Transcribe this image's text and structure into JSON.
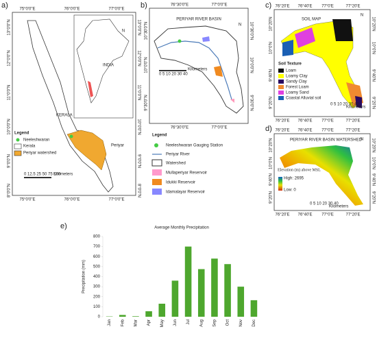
{
  "panel_a": {
    "label": "a)",
    "x_labels": [
      "75°0'0\"E",
      "76°0'0\"E",
      "77°0'0\"E"
    ],
    "y_labels": [
      "13°0'0\"N",
      "12°0'0\"N",
      "11°0'0\"N",
      "10°0'0\"N",
      "9°0'0\"N",
      "8°0'0\"N"
    ],
    "north": "N",
    "india": "INDIA",
    "kerala": "KERALA",
    "periyar": "Periyar",
    "legend_title": "Legend",
    "legend_items": [
      "Neeleshwaran",
      "Kerala",
      "Periyar watershed"
    ],
    "scale": "0 12.5 25 50 75 100",
    "scale_unit": "Kilometers"
  },
  "panel_b": {
    "label": "b)",
    "title": "PERIYAR RIVER BASIN",
    "x_labels": [
      "76°30'0\"E",
      "77°0'0\"E"
    ],
    "y_labels": [
      "10°30'0\"N",
      "10°0'0\"N",
      "9°30'0\"N"
    ],
    "north": "N",
    "scale": "0 5 10 20 30 40",
    "scale_unit": "Kilometers",
    "legend_title": "Legend",
    "legend_items": [
      "Neeleshwaran Gauging Station",
      "Periyar River",
      "Watershed",
      "Mullaperiyar Reservoir",
      "Idukki Reservoir",
      "Idamalayar Reservoir"
    ]
  },
  "panel_c": {
    "label": "c)",
    "title": "SOIL MAP",
    "x_labels": [
      "76°20'E",
      "76°40'E",
      "77°0'E",
      "77°20'E"
    ],
    "y_labels": [
      "10°20'N",
      "10°0'N",
      "9°40'N",
      "9°20'N"
    ],
    "north": "N",
    "legend_title": "Soil Texture",
    "legend_items": [
      "Loam",
      "Loamy Clay",
      "Sandy Clay",
      "Forest Loam",
      "Loamy Sand",
      "Coastal Alluvial soil"
    ],
    "scale": "0 5 10 20 30 40",
    "scale_unit": "Kilometers"
  },
  "panel_d": {
    "label": "d)",
    "title": "PERIYAR RIVER BASIN WATERSHED",
    "x_labels": [
      "76°20'E",
      "76°40'E",
      "77°0'E",
      "77°20'E"
    ],
    "y_labels": [
      "10°20'N",
      "10°0'N",
      "9°40'N",
      "9°20'N"
    ],
    "north": "N",
    "legend_title": "Elevation (m) above MSL",
    "high": "High: 2695",
    "low": "Low: 0",
    "scale": "0 5 10 20 30 40",
    "scale_unit": "Kilometers"
  },
  "panel_e": {
    "label": "e)"
  },
  "chart_data": {
    "type": "bar",
    "title": "Average Monthly Precipitation",
    "y_label": "Precipitation (mm)",
    "categories": [
      "Jan",
      "Feb",
      "Mar",
      "Apr",
      "May",
      "Jun",
      "Jul",
      "Aug",
      "Sep",
      "Oct",
      "Nov",
      "Dec"
    ],
    "values": [
      3,
      18,
      5,
      55,
      130,
      360,
      700,
      475,
      580,
      525,
      300,
      165
    ],
    "color": "#4ea72e",
    "ylim": [
      0,
      800
    ],
    "yticks": [
      0,
      100,
      200,
      300,
      400,
      500,
      600,
      700,
      800
    ]
  }
}
